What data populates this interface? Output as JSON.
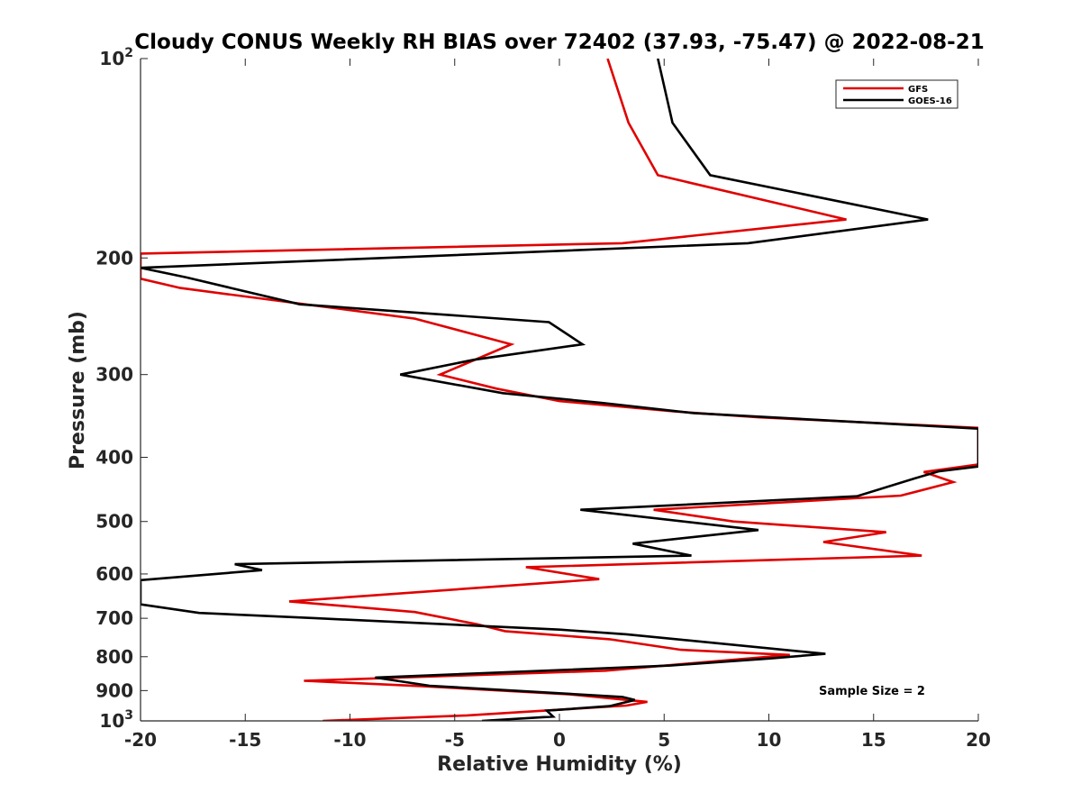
{
  "chart_data": {
    "type": "line",
    "title": "Cloudy CONUS Weekly RH BIAS over 72402 (37.93, -75.47) @ 2022-08-21",
    "xlabel": "Relative Humidity (%)",
    "ylabel": "Pressure (mb)",
    "xlim": [
      -20,
      20
    ],
    "ylim": [
      100,
      1000
    ],
    "yscale": "log",
    "y_reversed": true,
    "x_ticks": [
      "-20",
      "-15",
      "-10",
      "-5",
      "0",
      "5",
      "10",
      "15",
      "20"
    ],
    "y_ticks": [
      {
        "value": 100,
        "base": "10",
        "exp": "2"
      },
      {
        "value": 200,
        "label": "200"
      },
      {
        "value": 300,
        "label": "300"
      },
      {
        "value": 400,
        "label": "400"
      },
      {
        "value": 500,
        "label": "500"
      },
      {
        "value": 600,
        "label": "600"
      },
      {
        "value": 700,
        "label": "700"
      },
      {
        "value": 800,
        "label": "800"
      },
      {
        "value": 900,
        "label": "900"
      },
      {
        "value": 1000,
        "base": "10",
        "exp": "3"
      }
    ],
    "grid": false,
    "legend_position": "top-right",
    "annotation": "Sample Size = 2",
    "series": [
      {
        "name": "GFS",
        "color": "#e00000",
        "points": [
          [
            2.3,
            100
          ],
          [
            3.3,
            125
          ],
          [
            4.7,
            150
          ],
          [
            13.7,
            175
          ],
          [
            3.0,
            190
          ],
          [
            -20.0,
            197
          ],
          [
            -20.0,
            215
          ],
          [
            -18.1,
            222
          ],
          [
            -6.9,
            247
          ],
          [
            -2.3,
            270
          ],
          [
            -5.7,
            300
          ],
          [
            -3.0,
            315
          ],
          [
            0.0,
            329
          ],
          [
            5.5,
            341
          ],
          [
            9.5,
            348
          ],
          [
            20.0,
            361
          ],
          [
            20.0,
            410
          ],
          [
            17.4,
            421
          ],
          [
            18.8,
            436
          ],
          [
            16.3,
            457
          ],
          [
            4.5,
            480
          ],
          [
            8.3,
            500
          ],
          [
            15.6,
            519
          ],
          [
            12.6,
            537
          ],
          [
            17.3,
            563
          ],
          [
            -1.6,
            586
          ],
          [
            1.9,
            611
          ],
          [
            -12.9,
            660
          ],
          [
            -6.9,
            685
          ],
          [
            -3.9,
            715
          ],
          [
            -2.6,
            732
          ],
          [
            2.4,
            753
          ],
          [
            5.8,
            781
          ],
          [
            11.0,
            795
          ],
          [
            6.0,
            820
          ],
          [
            2.2,
            840
          ],
          [
            -12.2,
            870
          ],
          [
            -6.6,
            886
          ],
          [
            0.5,
            912
          ],
          [
            4.2,
            936
          ],
          [
            3.2,
            948
          ],
          [
            -1.9,
            970
          ],
          [
            -4.4,
            981
          ],
          [
            -11.3,
            1000
          ]
        ]
      },
      {
        "name": "GOES-16",
        "color": "#000000",
        "points": [
          [
            4.7,
            100
          ],
          [
            5.4,
            125
          ],
          [
            7.2,
            150
          ],
          [
            17.6,
            175
          ],
          [
            9.0,
            190
          ],
          [
            -20.0,
            207
          ],
          [
            -17.8,
            214
          ],
          [
            -12.4,
            235
          ],
          [
            -0.5,
            250
          ],
          [
            1.1,
            270
          ],
          [
            -4.1,
            285
          ],
          [
            -7.6,
            300
          ],
          [
            -2.7,
            320
          ],
          [
            2.0,
            331
          ],
          [
            6.4,
            343
          ],
          [
            20.0,
            362
          ],
          [
            20.0,
            413
          ],
          [
            18.1,
            420
          ],
          [
            17.0,
            430
          ],
          [
            14.2,
            458
          ],
          [
            1.0,
            480
          ],
          [
            9.5,
            515
          ],
          [
            3.5,
            540
          ],
          [
            6.3,
            563
          ],
          [
            -15.5,
            580
          ],
          [
            -14.2,
            592
          ],
          [
            -20.0,
            613
          ],
          [
            -20.0,
            667
          ],
          [
            -17.2,
            687
          ],
          [
            -11.6,
            700
          ],
          [
            0.0,
            728
          ],
          [
            3.2,
            740
          ],
          [
            12.7,
            792
          ],
          [
            10.0,
            805
          ],
          [
            5.3,
            825
          ],
          [
            -8.8,
            860
          ],
          [
            -6.2,
            885
          ],
          [
            3.0,
            920
          ],
          [
            3.6,
            930
          ],
          [
            2.4,
            950
          ],
          [
            -0.6,
            965
          ],
          [
            -0.3,
            985
          ],
          [
            -3.7,
            1000
          ]
        ]
      }
    ]
  }
}
